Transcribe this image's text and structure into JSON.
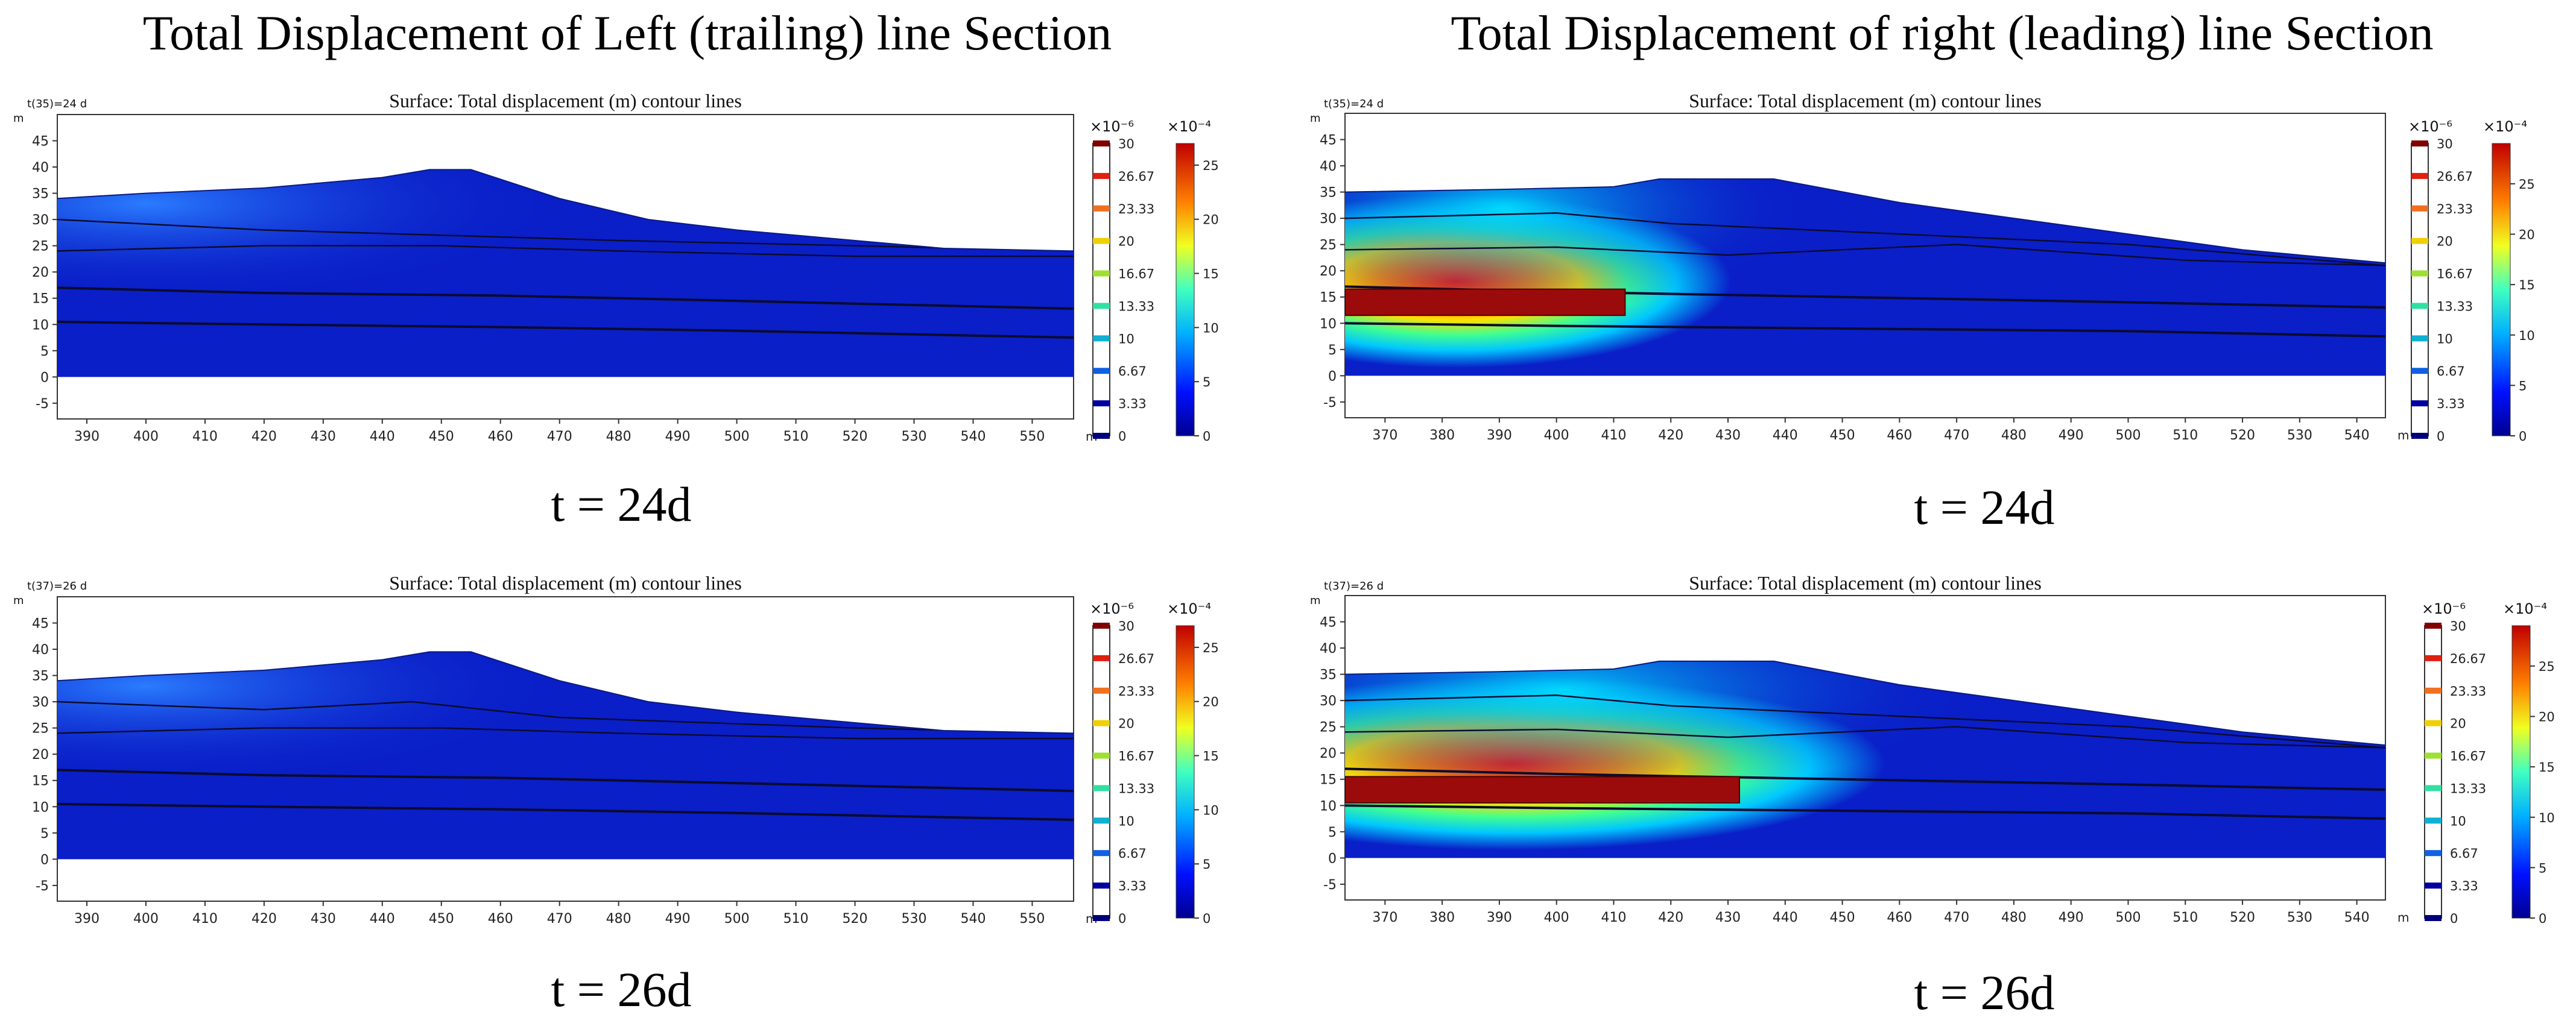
{
  "figure": {
    "left_title": "Total Displacement of Left (trailing) line Section",
    "right_title": "Total Displacement of right (leading) line Section"
  },
  "chart_data": [
    {
      "type": "heatmap",
      "id": "left-top",
      "title": "Surface: Total displacement (m)  contour lines",
      "time_label": "t(35)=24 d",
      "caption": "t = 24d",
      "xunit": "m",
      "yunit": "m",
      "xlim": [
        385,
        557
      ],
      "ylim": [
        -8,
        50
      ],
      "xticks": [
        390,
        400,
        410,
        420,
        430,
        440,
        450,
        460,
        470,
        480,
        490,
        500,
        510,
        520,
        530,
        540,
        550
      ],
      "yticks": [
        -5,
        0,
        5,
        10,
        15,
        20,
        25,
        30,
        35,
        40,
        45
      ],
      "surface_profile": [
        [
          385,
          34
        ],
        [
          400,
          35
        ],
        [
          420,
          36
        ],
        [
          440,
          38
        ],
        [
          448,
          39.5
        ],
        [
          455,
          39.5
        ],
        [
          470,
          34
        ],
        [
          485,
          30
        ],
        [
          500,
          28
        ],
        [
          520,
          26
        ],
        [
          535,
          24.5
        ],
        [
          557,
          24
        ]
      ],
      "layer_lines": [
        [
          [
            385,
            30
          ],
          [
            420,
            28
          ],
          [
            450,
            27
          ],
          [
            480,
            26
          ],
          [
            520,
            25
          ],
          [
            557,
            24
          ]
        ],
        [
          [
            385,
            24
          ],
          [
            420,
            25
          ],
          [
            450,
            25
          ],
          [
            480,
            24
          ],
          [
            520,
            23
          ],
          [
            557,
            23
          ]
        ],
        [
          [
            385,
            17
          ],
          [
            420,
            16
          ],
          [
            460,
            15.5
          ],
          [
            500,
            14.5
          ],
          [
            557,
            13
          ]
        ],
        [
          [
            385,
            10.5
          ],
          [
            420,
            10
          ],
          [
            460,
            9.5
          ],
          [
            500,
            8.8
          ],
          [
            557,
            7.5
          ]
        ]
      ],
      "tunnel": null,
      "colorbar_contour": {
        "scale": "×10⁻⁶",
        "ticks": [
          "30",
          "26.67",
          "23.33",
          "20",
          "16.67",
          "13.33",
          "10",
          "6.67",
          "3.33",
          "0"
        ]
      },
      "colorbar_surface": {
        "scale": "×10⁻⁴",
        "min": 0,
        "max": 27,
        "ticks": [
          0,
          5,
          10,
          15,
          20,
          25
        ]
      }
    },
    {
      "type": "heatmap",
      "id": "left-bottom",
      "title": "Surface: Total displacement (m)  contour lines",
      "time_label": "t(37)=26 d",
      "caption": "t = 26d",
      "xunit": "m",
      "yunit": "m",
      "xlim": [
        385,
        557
      ],
      "ylim": [
        -8,
        50
      ],
      "xticks": [
        390,
        400,
        410,
        420,
        430,
        440,
        450,
        460,
        470,
        480,
        490,
        500,
        510,
        520,
        530,
        540,
        550
      ],
      "yticks": [
        -5,
        0,
        5,
        10,
        15,
        20,
        25,
        30,
        35,
        40,
        45
      ],
      "surface_profile": [
        [
          385,
          34
        ],
        [
          400,
          35
        ],
        [
          420,
          36
        ],
        [
          440,
          38
        ],
        [
          448,
          39.5
        ],
        [
          455,
          39.5
        ],
        [
          470,
          34
        ],
        [
          485,
          30
        ],
        [
          500,
          28
        ],
        [
          520,
          26
        ],
        [
          535,
          24.5
        ],
        [
          557,
          24
        ]
      ],
      "layer_lines": [
        [
          [
            385,
            30
          ],
          [
            420,
            28.5
          ],
          [
            445,
            30
          ],
          [
            470,
            27
          ],
          [
            520,
            25
          ],
          [
            557,
            24
          ]
        ],
        [
          [
            385,
            24
          ],
          [
            420,
            25
          ],
          [
            450,
            25
          ],
          [
            480,
            24
          ],
          [
            520,
            23
          ],
          [
            557,
            23
          ]
        ],
        [
          [
            385,
            17
          ],
          [
            420,
            16
          ],
          [
            460,
            15.5
          ],
          [
            500,
            14.5
          ],
          [
            557,
            13
          ]
        ],
        [
          [
            385,
            10.5
          ],
          [
            420,
            10
          ],
          [
            460,
            9.5
          ],
          [
            500,
            8.8
          ],
          [
            557,
            7.5
          ]
        ]
      ],
      "tunnel": null,
      "colorbar_contour": {
        "scale": "×10⁻⁶",
        "ticks": [
          "30",
          "26.67",
          "23.33",
          "20",
          "16.67",
          "13.33",
          "10",
          "6.67",
          "3.33",
          "0"
        ]
      },
      "colorbar_surface": {
        "scale": "×10⁻⁴",
        "min": 0,
        "max": 27,
        "ticks": [
          0,
          5,
          10,
          15,
          20,
          25
        ]
      }
    },
    {
      "type": "heatmap",
      "id": "right-top",
      "title": "Surface: Total displacement (m)  contour lines",
      "time_label": "t(35)=24 d",
      "caption": "t = 24d",
      "xunit": "m",
      "yunit": "m",
      "xlim": [
        363,
        545
      ],
      "ylim": [
        -8,
        50
      ],
      "xticks": [
        370,
        380,
        390,
        400,
        410,
        420,
        430,
        440,
        450,
        460,
        470,
        480,
        490,
        500,
        510,
        520,
        530,
        540
      ],
      "yticks": [
        -5,
        0,
        5,
        10,
        15,
        20,
        25,
        30,
        35,
        40,
        45
      ],
      "surface_profile": [
        [
          363,
          35
        ],
        [
          390,
          35.5
        ],
        [
          410,
          36
        ],
        [
          418,
          37.5
        ],
        [
          438,
          37.5
        ],
        [
          460,
          33
        ],
        [
          480,
          30
        ],
        [
          500,
          27
        ],
        [
          520,
          24
        ],
        [
          545,
          21.5
        ]
      ],
      "layer_lines": [
        [
          [
            363,
            30
          ],
          [
            400,
            31
          ],
          [
            420,
            29
          ],
          [
            460,
            27
          ],
          [
            500,
            25
          ],
          [
            545,
            21
          ]
        ],
        [
          [
            363,
            24
          ],
          [
            400,
            24.5
          ],
          [
            430,
            23
          ],
          [
            470,
            25
          ],
          [
            510,
            22
          ],
          [
            545,
            21
          ]
        ],
        [
          [
            363,
            17
          ],
          [
            400,
            16
          ],
          [
            450,
            15
          ],
          [
            500,
            14
          ],
          [
            545,
            13
          ]
        ],
        [
          [
            363,
            10
          ],
          [
            400,
            9.5
          ],
          [
            450,
            9
          ],
          [
            500,
            8.5
          ],
          [
            545,
            7.5
          ]
        ]
      ],
      "tunnel": {
        "x0": 363,
        "x1": 412,
        "y0": 11.5,
        "y1": 16.5
      },
      "colorbar_contour": {
        "scale": "×10⁻⁶",
        "ticks": [
          "30",
          "26.67",
          "23.33",
          "20",
          "16.67",
          "13.33",
          "10",
          "6.67",
          "3.33",
          "0"
        ]
      },
      "colorbar_surface": {
        "scale": "×10⁻⁴",
        "min": 0,
        "max": 29,
        "ticks": [
          0,
          5,
          10,
          15,
          20,
          25
        ]
      }
    },
    {
      "type": "heatmap",
      "id": "right-bottom",
      "title": "Surface: Total displacement (m)  contour lines",
      "time_label": "t(37)=26 d",
      "caption": "t = 26d",
      "xunit": "m",
      "yunit": "m",
      "xlim": [
        363,
        545
      ],
      "ylim": [
        -8,
        50
      ],
      "xticks": [
        370,
        380,
        390,
        400,
        410,
        420,
        430,
        440,
        450,
        460,
        470,
        480,
        490,
        500,
        510,
        520,
        530,
        540
      ],
      "yticks": [
        -5,
        0,
        5,
        10,
        15,
        20,
        25,
        30,
        35,
        40,
        45
      ],
      "surface_profile": [
        [
          363,
          35
        ],
        [
          390,
          35.5
        ],
        [
          410,
          36
        ],
        [
          418,
          37.5
        ],
        [
          438,
          37.5
        ],
        [
          460,
          33
        ],
        [
          480,
          30
        ],
        [
          500,
          27
        ],
        [
          520,
          24
        ],
        [
          545,
          21.5
        ]
      ],
      "layer_lines": [
        [
          [
            363,
            30
          ],
          [
            400,
            31
          ],
          [
            420,
            29
          ],
          [
            460,
            27
          ],
          [
            500,
            25
          ],
          [
            545,
            21
          ]
        ],
        [
          [
            363,
            24
          ],
          [
            400,
            24.5
          ],
          [
            430,
            23
          ],
          [
            470,
            25
          ],
          [
            510,
            22
          ],
          [
            545,
            21
          ]
        ],
        [
          [
            363,
            17
          ],
          [
            400,
            16
          ],
          [
            450,
            15
          ],
          [
            500,
            14
          ],
          [
            545,
            13
          ]
        ],
        [
          [
            363,
            10
          ],
          [
            400,
            9.5
          ],
          [
            450,
            9
          ],
          [
            500,
            8.5
          ],
          [
            545,
            7.5
          ]
        ]
      ],
      "tunnel": {
        "x0": 363,
        "x1": 432,
        "y0": 10.5,
        "y1": 15.5
      },
      "colorbar_contour": {
        "scale": "×10⁻⁶",
        "ticks": [
          "30",
          "26.67",
          "23.33",
          "20",
          "16.67",
          "13.33",
          "10",
          "6.67",
          "3.33",
          "0"
        ]
      },
      "colorbar_surface": {
        "scale": "×10⁻⁴",
        "min": 0,
        "max": 29,
        "ticks": [
          0,
          5,
          10,
          15,
          20,
          25
        ]
      }
    }
  ]
}
